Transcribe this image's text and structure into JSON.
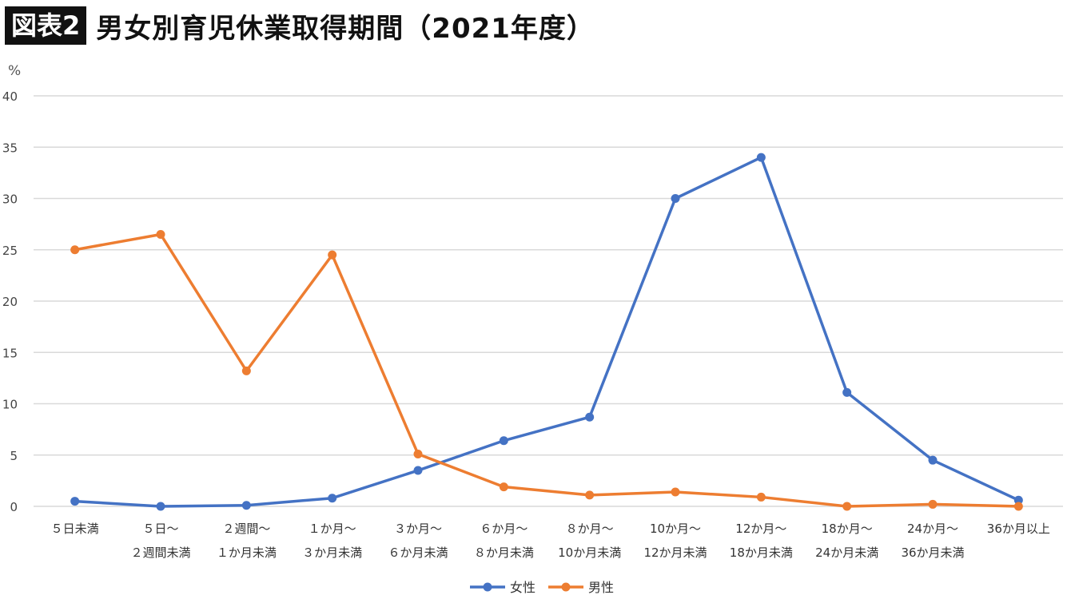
{
  "header": {
    "badge": "図表2",
    "title": "男女別育児休業取得期間（2021年度）"
  },
  "chart_data": {
    "type": "line",
    "ylabel": "%",
    "ylim": [
      0,
      40
    ],
    "yticks": [
      0,
      5,
      10,
      15,
      20,
      25,
      30,
      35,
      40
    ],
    "grid": true,
    "legend_position": "bottom",
    "categories": [
      [
        "５日未満",
        ""
      ],
      [
        "５日～",
        "２週間未満"
      ],
      [
        "２週間～",
        "１か月未満"
      ],
      [
        "１か月～",
        "３か月未満"
      ],
      [
        "３か月～",
        "６か月未満"
      ],
      [
        "６か月～",
        "８か月未満"
      ],
      [
        "８か月～",
        "10か月未満"
      ],
      [
        "10か月～",
        "12か月未満"
      ],
      [
        "12か月～",
        "18か月未満"
      ],
      [
        "18か月～",
        "24か月未満"
      ],
      [
        "24か月～",
        "36か月未満"
      ],
      [
        "36か月以上",
        ""
      ]
    ],
    "series": [
      {
        "name": "女性",
        "color": "#4472C4",
        "values": [
          0.5,
          0.0,
          0.1,
          0.8,
          3.5,
          6.4,
          8.7,
          30.0,
          34.0,
          11.1,
          4.5,
          0.6
        ]
      },
      {
        "name": "男性",
        "color": "#ED7D31",
        "values": [
          25.0,
          26.5,
          13.2,
          24.5,
          5.1,
          1.9,
          1.1,
          1.4,
          0.9,
          0.0,
          0.2,
          0.0
        ]
      }
    ]
  }
}
